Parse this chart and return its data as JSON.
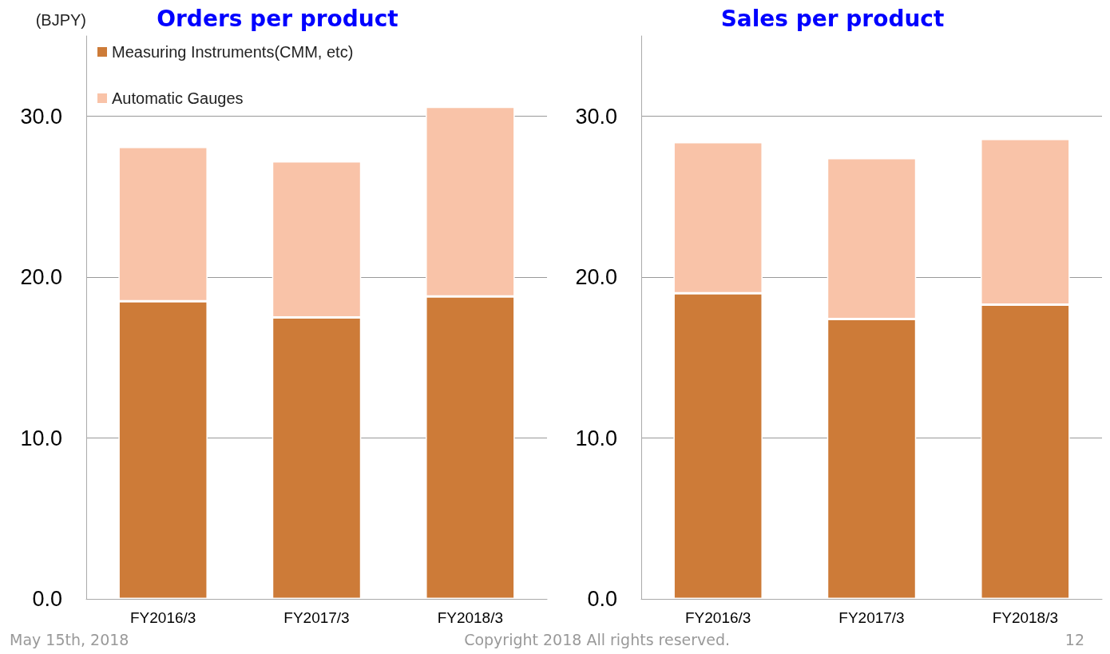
{
  "chart_data": [
    {
      "type": "bar",
      "title": "Orders per product",
      "ylabel": "(BJPY)",
      "categories": [
        "FY2016/3",
        "FY2017/3",
        "FY2018/3"
      ],
      "stacked": true,
      "series": [
        {
          "name": "Measuring Instruments(CMM, etc)",
          "color": "#cd7b38",
          "values": [
            18.5,
            17.5,
            18.8
          ]
        },
        {
          "name": "Automatic Gauges",
          "color": "#f9c3a8",
          "values": [
            9.6,
            9.7,
            11.8
          ]
        }
      ],
      "ylim": [
        0,
        35
      ],
      "yticks": [
        {
          "value": 0,
          "label": "0.0"
        },
        {
          "value": 10,
          "label": "10.0"
        },
        {
          "value": 20,
          "label": "20.0"
        },
        {
          "value": 30,
          "label": "30.0"
        }
      ],
      "grid": "y",
      "legend": "top left",
      "annotations": [
        "May 15th, 2018",
        "Copyright 2018 All rights reserved.",
        "12"
      ]
    },
    {
      "type": "bar",
      "title": "Sales per product",
      "categories": [
        "FY2016/3",
        "FY2017/3",
        "FY2018/3"
      ],
      "stacked": true,
      "series": [
        {
          "color": "#cd7b38",
          "values": [
            19.0,
            17.4,
            18.3
          ]
        },
        {
          "color": "#f9c3a8",
          "values": [
            9.4,
            10.0,
            10.3
          ]
        }
      ],
      "ylim": [
        0,
        35
      ],
      "yticks": [
        {
          "value": 0,
          "label": "0.0"
        },
        {
          "value": 10,
          "label": "10.0"
        },
        {
          "value": 20,
          "label": "20.0"
        },
        {
          "value": 30,
          "label": "30.0"
        }
      ],
      "grid": "y",
      "legend": false
    }
  ]
}
